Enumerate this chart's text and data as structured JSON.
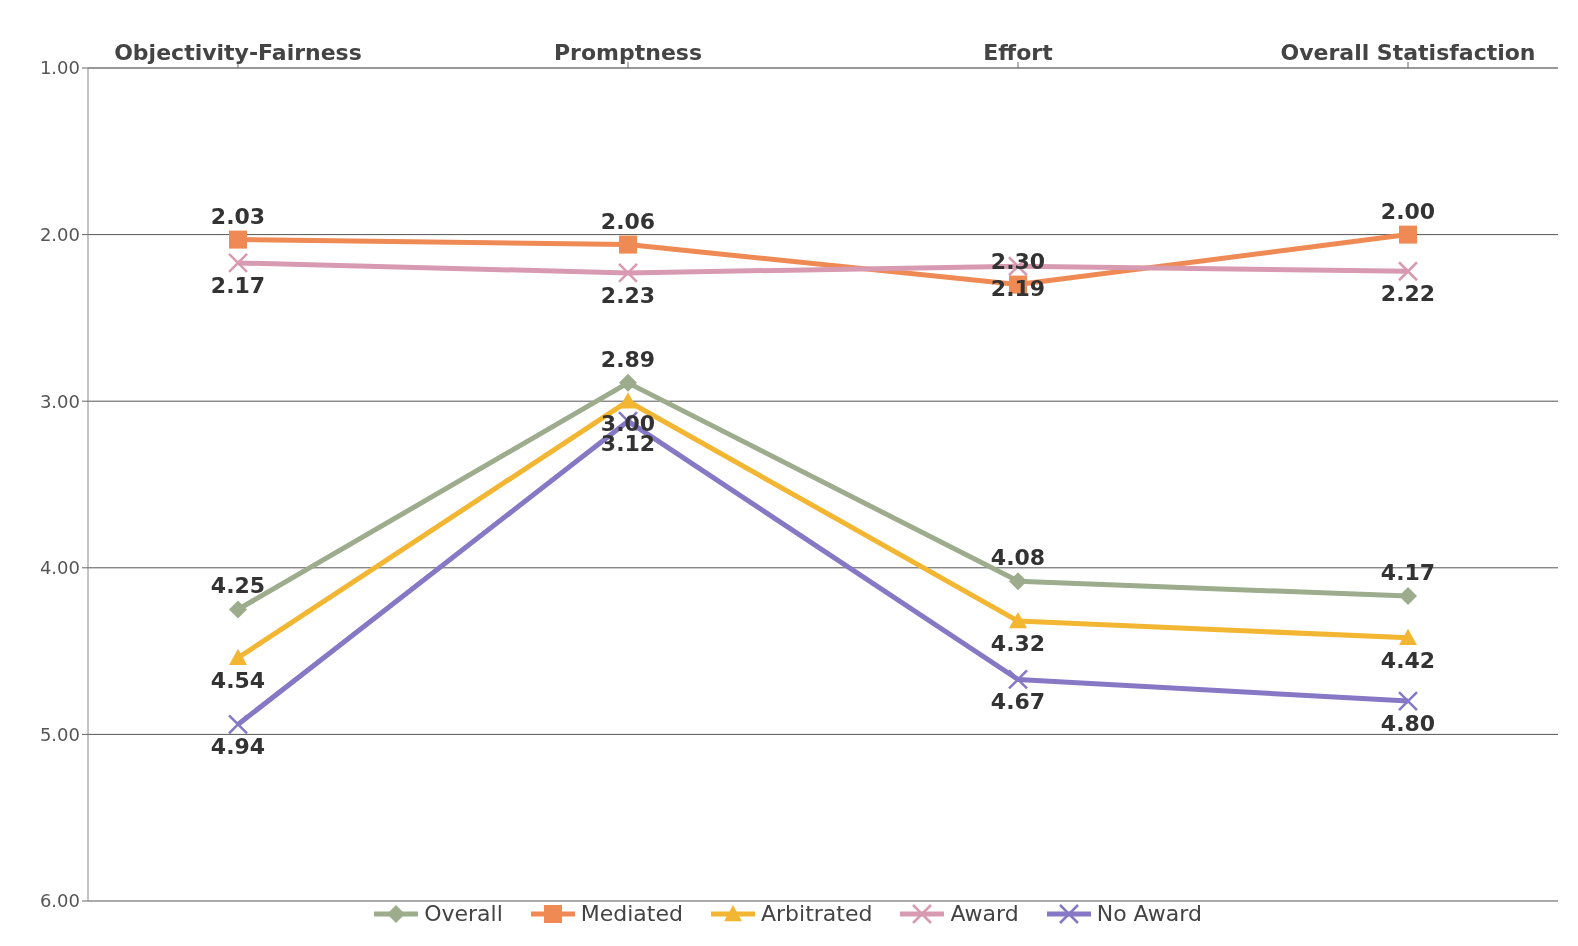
{
  "chart_data": {
    "type": "line",
    "categories": [
      "Objectivity-Fairness",
      "Promptness",
      "Effort",
      "Overall Statisfaction"
    ],
    "series": [
      {
        "name": "Overall",
        "color": "#9cac8c",
        "marker": "diamond",
        "values": [
          4.25,
          2.89,
          4.08,
          4.17
        ],
        "value_labels": [
          "4.25",
          "2.89",
          "4.08",
          "4.17"
        ]
      },
      {
        "name": "Mediated",
        "color": "#ef8a55",
        "marker": "square",
        "values": [
          2.03,
          2.06,
          2.3,
          2.0
        ],
        "value_labels": [
          "2.03",
          "2.06",
          "2.30",
          "2.00"
        ]
      },
      {
        "name": "Arbitrated",
        "color": "#f2b632",
        "marker": "triangle",
        "values": [
          4.54,
          3.0,
          4.32,
          4.42
        ],
        "value_labels": [
          "4.54",
          "3.00",
          "4.32",
          "4.42"
        ]
      },
      {
        "name": "Award",
        "color": "#d89ab0",
        "marker": "cross",
        "values": [
          2.17,
          2.23,
          2.19,
          2.22
        ],
        "value_labels": [
          "2.17",
          "2.23",
          "2.19",
          "2.22"
        ]
      },
      {
        "name": "No Award",
        "color": "#8678c4",
        "marker": "cross",
        "values": [
          4.94,
          3.12,
          4.67,
          4.8
        ],
        "value_labels": [
          "4.94",
          "3.12",
          "4.67",
          "4.80"
        ]
      }
    ],
    "ylim": [
      6,
      1
    ],
    "yticks": [
      {
        "value": 1,
        "label": "1.00"
      },
      {
        "value": 2,
        "label": "2.00"
      },
      {
        "value": 3,
        "label": "3.00"
      },
      {
        "value": 4,
        "label": "4.00"
      },
      {
        "value": 5,
        "label": "5.00"
      },
      {
        "value": 6,
        "label": "6.00"
      }
    ],
    "grid": "y",
    "legend": "bottom"
  }
}
